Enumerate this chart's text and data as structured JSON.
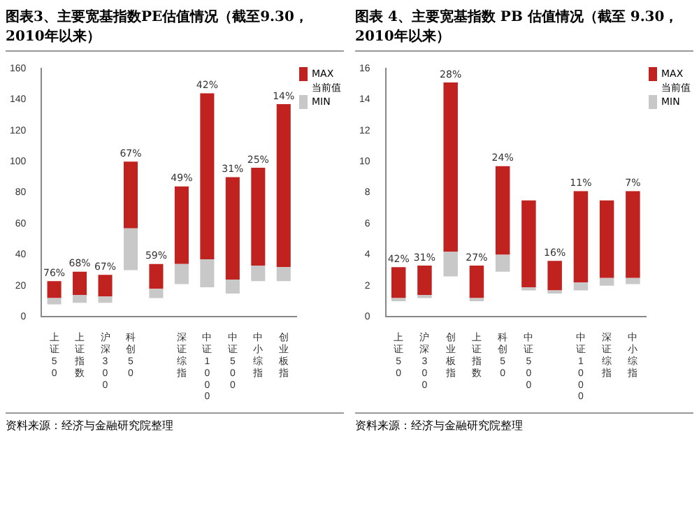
{
  "chart_data": [
    {
      "type": "bar",
      "title": "图表3、主要宽基指数PE估值情况（截至9.30，2010年以来）",
      "stacked": true,
      "legend": "top right",
      "grid": false,
      "categories": [
        "上证50",
        "上证指数",
        "沪深300",
        "科创50",
        null,
        "深证综指",
        "中证1000",
        "中证500",
        "中小综指",
        "创业板指"
      ],
      "series": [
        {
          "name": "MIN",
          "color": "#c8c8c8",
          "base": [
            8,
            9,
            9,
            30,
            12,
            21,
            19,
            15,
            23,
            23
          ],
          "values": [
            4,
            5,
            4,
            27,
            6,
            13,
            18,
            9,
            10,
            9
          ]
        },
        {
          "name": "MAX",
          "color": "#c0221f",
          "values": [
            11,
            15,
            14,
            43,
            16,
            50,
            107,
            66,
            63,
            105
          ]
        }
      ],
      "ylim": [
        0,
        160
      ],
      "yticks": [
        0,
        20,
        40,
        60,
        80,
        100,
        120,
        140,
        160
      ],
      "annotations": [
        "当前值",
        "资料来源：经济与金融研究院整理",
        {
          "text": "76%",
          "x": "上证50",
          "y": 23
        },
        {
          "text": "68%",
          "x": "上证指数",
          "y": 29
        },
        {
          "text": "67%",
          "x": "沪深300",
          "y": 27
        },
        {
          "text": "67%",
          "x": "科创50",
          "y": 100
        },
        {
          "text": "59%",
          "y": 34
        },
        {
          "text": "49%",
          "x": "深证综指",
          "y": 84
        },
        {
          "text": "42%",
          "x": "中证1000",
          "y": 144
        },
        {
          "text": "31%",
          "x": "中证500",
          "y": 90
        },
        {
          "text": "25%",
          "x": "中小综指",
          "y": 96
        },
        {
          "text": "14%",
          "x": "创业板指",
          "y": 137
        }
      ]
    },
    {
      "type": "bar",
      "title": "图表 4、主要宽基指数 PB 估值情况（截至 9.30，2010年以来）",
      "stacked": true,
      "legend": "top right",
      "grid": false,
      "categories": [
        "上证50",
        "沪深300",
        "创业板指",
        "上证指数",
        "科创50",
        "中证500",
        null,
        "中证1000",
        "深证综指",
        "中小综指"
      ],
      "series": [
        {
          "name": "MIN",
          "color": "#c8c8c8",
          "base": [
            1.0,
            1.2,
            2.6,
            1.0,
            2.9,
            1.7,
            1.5,
            1.7,
            2.0,
            2.1
          ],
          "values": [
            0.2,
            0.2,
            1.6,
            0.2,
            1.1,
            0.2,
            0.2,
            0.5,
            0.5,
            0.4
          ]
        },
        {
          "name": "MAX",
          "color": "#c0221f",
          "values": [
            2.0,
            1.9,
            10.9,
            2.1,
            5.7,
            5.6,
            1.9,
            5.9,
            5.0,
            5.6
          ]
        }
      ],
      "ylim": [
        0,
        16
      ],
      "yticks": [
        0,
        2,
        4,
        6,
        8,
        10,
        12,
        14,
        16
      ],
      "annotations": [
        "当前值",
        "资料来源：经济与金融研究院整理",
        {
          "text": "42%",
          "x": "上证50",
          "y": 3.2
        },
        {
          "text": "31%",
          "x": "沪深300",
          "y": 3.3
        },
        {
          "text": "28%",
          "x": "创业板指",
          "y": 15.1
        },
        {
          "text": "27%",
          "x": "上证指数",
          "y": 3.3
        },
        {
          "text": "24%",
          "x": "科创50",
          "y": 9.7
        },
        {
          "text": "16%",
          "y": 3.6
        },
        {
          "text": "11%",
          "x": "中证1000",
          "y": 8.1
        },
        {
          "text": "7%",
          "x": "中小综指",
          "y": 8.1
        }
      ]
    }
  ]
}
